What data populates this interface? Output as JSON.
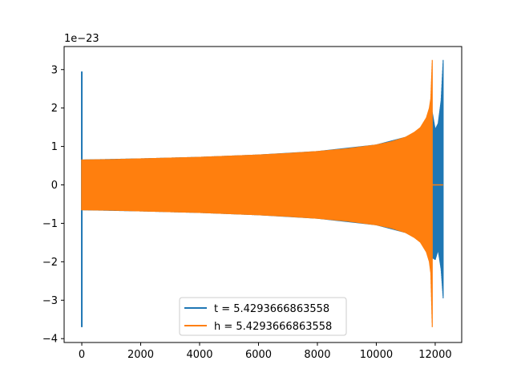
{
  "chart_data": {
    "type": "line",
    "title": "",
    "xlabel": "",
    "ylabel": "",
    "y_offset_label": "1e−23",
    "xlim": [
      -600,
      12900
    ],
    "ylim": [
      -4.1,
      3.6
    ],
    "x_ticks": [
      0,
      2000,
      4000,
      6000,
      8000,
      10000,
      12000
    ],
    "x_tick_labels": [
      "0",
      "2000",
      "4000",
      "6000",
      "8000",
      "10000",
      "12000"
    ],
    "y_ticks": [
      -4,
      -3,
      -2,
      -1,
      0,
      1,
      2,
      3
    ],
    "y_tick_labels": [
      "−4",
      "−3",
      "−2",
      "−1",
      "0",
      "1",
      "2",
      "3"
    ],
    "grid": false,
    "legend_position": "lower-center",
    "series": [
      {
        "name": "t = 5.4293666863558",
        "color": "#1f77b4",
        "description_points": {
          "initial_spike_x": 0,
          "initial_spike_max": 2.95,
          "initial_spike_min": -3.7,
          "envelope_start_x": 0,
          "envelope_start_amp": 0.65,
          "envelope_end_x": 12270,
          "peak_max": 3.25,
          "peak_min": -2.95
        },
        "envelope_upper": [
          [
            0,
            0.66
          ],
          [
            2000,
            0.69
          ],
          [
            4000,
            0.73
          ],
          [
            6000,
            0.79
          ],
          [
            8000,
            0.88
          ],
          [
            10000,
            1.05
          ],
          [
            11000,
            1.25
          ],
          [
            11500,
            1.45
          ],
          [
            11900,
            1.9
          ],
          [
            12000,
            1.45
          ],
          [
            12100,
            1.6
          ],
          [
            12200,
            2.2
          ],
          [
            12270,
            3.25
          ]
        ],
        "envelope_lower": [
          [
            0,
            -0.66
          ],
          [
            2000,
            -0.69
          ],
          [
            4000,
            -0.73
          ],
          [
            6000,
            -0.79
          ],
          [
            8000,
            -0.88
          ],
          [
            10000,
            -1.05
          ],
          [
            11000,
            -1.25
          ],
          [
            11500,
            -1.45
          ],
          [
            11900,
            -1.9
          ],
          [
            12000,
            -1.95
          ],
          [
            12100,
            -1.7
          ],
          [
            12200,
            -2.2
          ],
          [
            12270,
            -2.95
          ]
        ]
      },
      {
        "name": "h = 5.4293666863558",
        "color": "#ff7f0e",
        "envelope_upper": [
          [
            0,
            0.66
          ],
          [
            1000,
            0.67
          ],
          [
            2000,
            0.69
          ],
          [
            3000,
            0.71
          ],
          [
            4000,
            0.73
          ],
          [
            5000,
            0.76
          ],
          [
            6000,
            0.79
          ],
          [
            7000,
            0.83
          ],
          [
            8000,
            0.88
          ],
          [
            9000,
            0.95
          ],
          [
            10000,
            1.05
          ],
          [
            10500,
            1.13
          ],
          [
            11000,
            1.25
          ],
          [
            11300,
            1.38
          ],
          [
            11500,
            1.5
          ],
          [
            11700,
            1.75
          ],
          [
            11800,
            2.0
          ],
          [
            11850,
            2.25
          ],
          [
            11900,
            3.25
          ]
        ],
        "envelope_lower": [
          [
            0,
            -0.66
          ],
          [
            1000,
            -0.67
          ],
          [
            2000,
            -0.69
          ],
          [
            3000,
            -0.71
          ],
          [
            4000,
            -0.73
          ],
          [
            5000,
            -0.76
          ],
          [
            6000,
            -0.79
          ],
          [
            7000,
            -0.83
          ],
          [
            8000,
            -0.88
          ],
          [
            9000,
            -0.95
          ],
          [
            10000,
            -1.05
          ],
          [
            10500,
            -1.13
          ],
          [
            11000,
            -1.25
          ],
          [
            11300,
            -1.38
          ],
          [
            11500,
            -1.5
          ],
          [
            11700,
            -1.75
          ],
          [
            11800,
            -2.0
          ],
          [
            11850,
            -2.3
          ],
          [
            11900,
            -3.7
          ]
        ],
        "tail": [
          [
            11900,
            0
          ],
          [
            12270,
            0
          ]
        ]
      }
    ]
  }
}
